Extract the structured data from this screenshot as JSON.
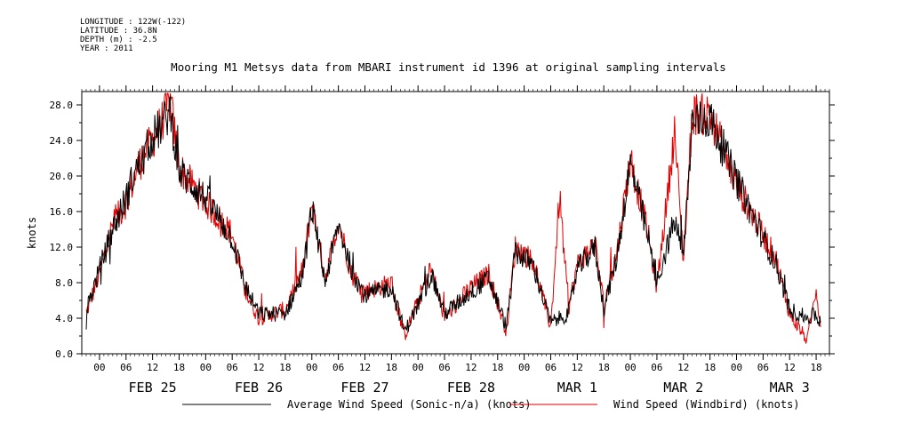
{
  "meta": {
    "longitude": "LONGITUDE : 122W(-122)",
    "latitude": "LATITUDE : 36.8N",
    "depth": "DEPTH (m) : -2.5",
    "year": "YEAR : 2011"
  },
  "chart_data": {
    "type": "line",
    "title": "Mooring M1 Metsys data from MBARI instrument id 1396 at original sampling intervals",
    "ylabel": "knots",
    "xlabel": "",
    "ylim": [
      0,
      29.5
    ],
    "xlim": [
      "2011-02-24T20:00",
      "2011-03-03T21:00"
    ],
    "yticks": [
      "0.0",
      "4.0",
      "8.0",
      "12.0",
      "16.0",
      "20.0",
      "24.0",
      "28.0"
    ],
    "hour_ticks": [
      {
        "t": "2011-02-25T00:00",
        "label": "00"
      },
      {
        "t": "2011-02-25T06:00",
        "label": "06"
      },
      {
        "t": "2011-02-25T12:00",
        "label": "12"
      },
      {
        "t": "2011-02-25T18:00",
        "label": "18"
      },
      {
        "t": "2011-02-26T00:00",
        "label": "00"
      },
      {
        "t": "2011-02-26T06:00",
        "label": "06"
      },
      {
        "t": "2011-02-26T12:00",
        "label": "12"
      },
      {
        "t": "2011-02-26T18:00",
        "label": "18"
      },
      {
        "t": "2011-02-27T00:00",
        "label": "00"
      },
      {
        "t": "2011-02-27T06:00",
        "label": "06"
      },
      {
        "t": "2011-02-27T12:00",
        "label": "12"
      },
      {
        "t": "2011-02-27T18:00",
        "label": "18"
      },
      {
        "t": "2011-02-28T00:00",
        "label": "00"
      },
      {
        "t": "2011-02-28T06:00",
        "label": "06"
      },
      {
        "t": "2011-02-28T12:00",
        "label": "12"
      },
      {
        "t": "2011-02-28T18:00",
        "label": "18"
      },
      {
        "t": "2011-03-01T00:00",
        "label": "00"
      },
      {
        "t": "2011-03-01T06:00",
        "label": "06"
      },
      {
        "t": "2011-03-01T12:00",
        "label": "12"
      },
      {
        "t": "2011-03-01T18:00",
        "label": "18"
      },
      {
        "t": "2011-03-02T00:00",
        "label": "00"
      },
      {
        "t": "2011-03-02T06:00",
        "label": "06"
      },
      {
        "t": "2011-03-02T12:00",
        "label": "12"
      },
      {
        "t": "2011-03-02T18:00",
        "label": "18"
      },
      {
        "t": "2011-03-03T00:00",
        "label": "00"
      },
      {
        "t": "2011-03-03T06:00",
        "label": "06"
      },
      {
        "t": "2011-03-03T12:00",
        "label": "12"
      },
      {
        "t": "2011-03-03T18:00",
        "label": "18"
      }
    ],
    "day_labels": [
      {
        "t": "2011-02-25T12:00",
        "label": "FEB 25"
      },
      {
        "t": "2011-02-26T12:00",
        "label": "FEB 26"
      },
      {
        "t": "2011-02-27T12:00",
        "label": "FEB 27"
      },
      {
        "t": "2011-02-28T12:00",
        "label": "FEB 28"
      },
      {
        "t": "2011-03-01T12:00",
        "label": "MAR  1"
      },
      {
        "t": "2011-03-02T12:00",
        "label": "MAR  2"
      },
      {
        "t": "2011-03-03T12:00",
        "label": "MAR  3"
      }
    ],
    "legend_position": "bottom",
    "series": [
      {
        "name": "Average Wind Speed (Sonic-n/a) (knots)",
        "color": "#000000",
        "points": [
          [
            "2011-02-24T21:00",
            4.8
          ],
          [
            "2011-02-25T00:00",
            9.5
          ],
          [
            "2011-02-25T03:00",
            14.0
          ],
          [
            "2011-02-25T06:00",
            17.5
          ],
          [
            "2011-02-25T08:00",
            20.5
          ],
          [
            "2011-02-25T10:00",
            22.0
          ],
          [
            "2011-02-25T12:00",
            24.5
          ],
          [
            "2011-02-25T14:00",
            25.5
          ],
          [
            "2011-02-25T16:00",
            27.5
          ],
          [
            "2011-02-25T18:00",
            20.5
          ],
          [
            "2011-02-26T00:00",
            17.5
          ],
          [
            "2011-02-26T06:00",
            13.0
          ],
          [
            "2011-02-26T09:00",
            7.5
          ],
          [
            "2011-02-26T12:00",
            4.5
          ],
          [
            "2011-02-26T18:00",
            4.5
          ],
          [
            "2011-02-26T22:00",
            9.0
          ],
          [
            "2011-02-27T00:00",
            16.5
          ],
          [
            "2011-02-27T03:00",
            8.0
          ],
          [
            "2011-02-27T06:00",
            14.5
          ],
          [
            "2011-02-27T09:00",
            9.5
          ],
          [
            "2011-02-27T12:00",
            6.5
          ],
          [
            "2011-02-27T18:00",
            7.5
          ],
          [
            "2011-02-27T21:00",
            2.5
          ],
          [
            "2011-02-28T00:00",
            5.5
          ],
          [
            "2011-02-28T03:00",
            9.0
          ],
          [
            "2011-02-28T06:00",
            4.5
          ],
          [
            "2011-02-28T12:00",
            7.0
          ],
          [
            "2011-02-28T16:00",
            8.5
          ],
          [
            "2011-02-28T20:00",
            3.0
          ],
          [
            "2011-02-28T22:00",
            11.5
          ],
          [
            "2011-03-01T02:00",
            10.0
          ],
          [
            "2011-03-01T06:00",
            3.5
          ],
          [
            "2011-03-01T10:00",
            4.5
          ],
          [
            "2011-03-01T12:00",
            9.5
          ],
          [
            "2011-03-01T16:00",
            12.0
          ],
          [
            "2011-03-01T18:00",
            5.0
          ],
          [
            "2011-03-01T21:00",
            11.0
          ],
          [
            "2011-03-02T00:00",
            21.5
          ],
          [
            "2011-03-02T04:00",
            13.0
          ],
          [
            "2011-03-02T06:00",
            8.0
          ],
          [
            "2011-03-02T10:00",
            15.0
          ],
          [
            "2011-03-02T12:00",
            11.0
          ],
          [
            "2011-03-02T14:00",
            26.0
          ],
          [
            "2011-03-02T18:00",
            26.5
          ],
          [
            "2011-03-03T00:00",
            19.5
          ],
          [
            "2011-03-03T06:00",
            13.0
          ],
          [
            "2011-03-03T09:00",
            10.0
          ],
          [
            "2011-03-03T12:00",
            5.0
          ],
          [
            "2011-03-03T16:00",
            4.0
          ],
          [
            "2011-03-03T18:00",
            4.5
          ],
          [
            "2011-03-03T19:00",
            3.5
          ]
        ]
      },
      {
        "name": "Wind Speed (Windbird) (knots)",
        "color": "#e00000",
        "points": [
          [
            "2011-02-24T21:00",
            4.5
          ],
          [
            "2011-02-25T00:00",
            9.0
          ],
          [
            "2011-02-25T03:00",
            14.5
          ],
          [
            "2011-02-25T06:00",
            17.0
          ],
          [
            "2011-02-25T08:00",
            20.0
          ],
          [
            "2011-02-25T10:00",
            22.5
          ],
          [
            "2011-02-25T12:00",
            24.0
          ],
          [
            "2011-02-25T14:00",
            26.0
          ],
          [
            "2011-02-25T16:00",
            28.5
          ],
          [
            "2011-02-25T18:00",
            21.0
          ],
          [
            "2011-02-26T00:00",
            17.0
          ],
          [
            "2011-02-26T06:00",
            13.5
          ],
          [
            "2011-02-26T09:00",
            7.0
          ],
          [
            "2011-02-26T12:00",
            4.0
          ],
          [
            "2011-02-26T18:00",
            5.0
          ],
          [
            "2011-02-26T22:00",
            9.5
          ],
          [
            "2011-02-27T00:00",
            17.0
          ],
          [
            "2011-02-27T03:00",
            8.5
          ],
          [
            "2011-02-27T06:00",
            15.0
          ],
          [
            "2011-02-27T09:00",
            9.0
          ],
          [
            "2011-02-27T12:00",
            7.0
          ],
          [
            "2011-02-27T18:00",
            8.0
          ],
          [
            "2011-02-27T21:00",
            2.0
          ],
          [
            "2011-02-28T00:00",
            6.0
          ],
          [
            "2011-02-28T03:00",
            9.5
          ],
          [
            "2011-02-28T06:00",
            4.0
          ],
          [
            "2011-02-28T12:00",
            7.5
          ],
          [
            "2011-02-28T16:00",
            9.0
          ],
          [
            "2011-02-28T20:00",
            2.5
          ],
          [
            "2011-02-28T22:00",
            12.0
          ],
          [
            "2011-03-01T02:00",
            10.5
          ],
          [
            "2011-03-01T06:00",
            3.0
          ],
          [
            "2011-03-01T08:00",
            17.8
          ],
          [
            "2011-03-01T10:00",
            5.0
          ],
          [
            "2011-03-01T12:00",
            10.0
          ],
          [
            "2011-03-01T16:00",
            12.5
          ],
          [
            "2011-03-01T18:00",
            5.5
          ],
          [
            "2011-03-01T21:00",
            11.5
          ],
          [
            "2011-03-02T00:00",
            22.0
          ],
          [
            "2011-03-02T04:00",
            13.5
          ],
          [
            "2011-03-02T06:00",
            7.5
          ],
          [
            "2011-03-02T10:00",
            25.0
          ],
          [
            "2011-03-02T12:00",
            10.5
          ],
          [
            "2011-03-02T14:00",
            27.0
          ],
          [
            "2011-03-02T18:00",
            27.0
          ],
          [
            "2011-03-03T00:00",
            19.0
          ],
          [
            "2011-03-03T06:00",
            13.5
          ],
          [
            "2011-03-03T09:00",
            10.5
          ],
          [
            "2011-03-03T12:00",
            4.5
          ],
          [
            "2011-03-03T16:00",
            1.5
          ],
          [
            "2011-03-03T18:00",
            7.5
          ],
          [
            "2011-03-03T19:00",
            3.0
          ]
        ]
      }
    ]
  }
}
